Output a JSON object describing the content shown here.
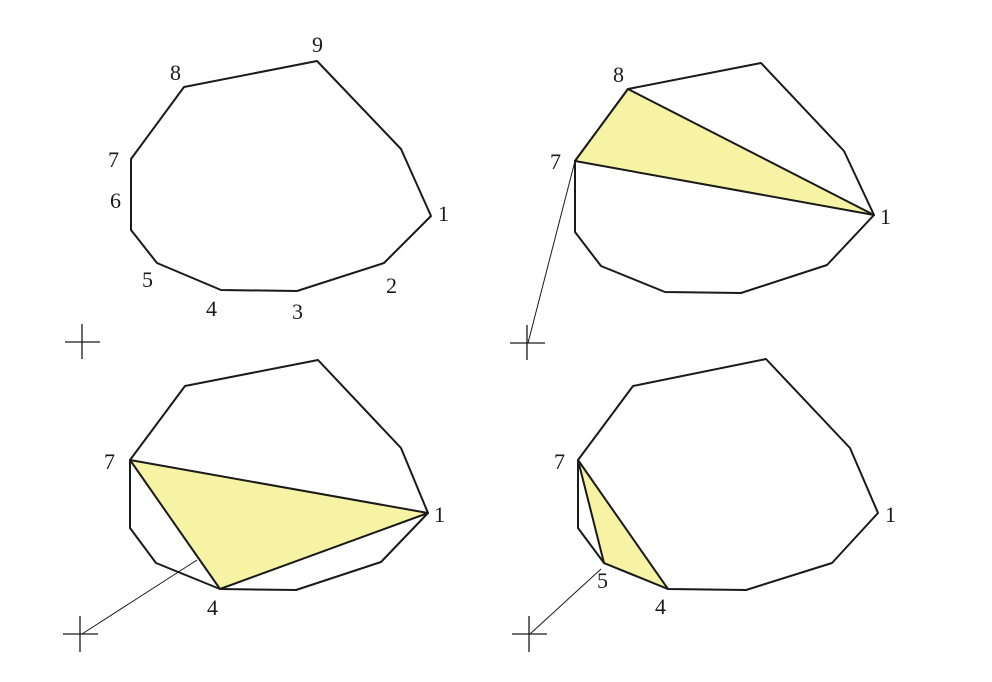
{
  "panels": [
    {
      "id": "panel-1",
      "vertex_labels": [
        "1",
        "2",
        "3",
        "4",
        "5",
        "6",
        "7",
        "8",
        "9"
      ]
    },
    {
      "id": "panel-2",
      "vertex_labels": [
        "7",
        "8",
        "1"
      ],
      "highlight": {
        "fill": "#f7f3a4",
        "vertices": [
          "7",
          "8",
          "1"
        ]
      }
    },
    {
      "id": "panel-3",
      "vertex_labels": [
        "7",
        "1",
        "4"
      ],
      "highlight": {
        "fill": "#f7f3a4",
        "vertices": [
          "7",
          "1",
          "4"
        ]
      }
    },
    {
      "id": "panel-4",
      "vertex_labels": [
        "7",
        "1",
        "5",
        "4"
      ],
      "highlight": {
        "fill": "#f7f3a4",
        "vertices": [
          "7",
          "5",
          "4"
        ]
      }
    }
  ]
}
